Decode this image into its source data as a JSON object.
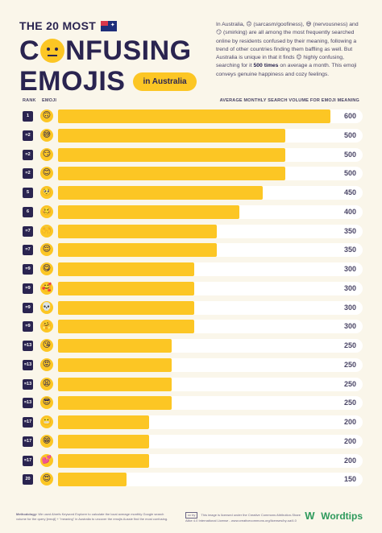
{
  "header": {
    "title_small": "THE 20 MOST",
    "title_line1_prefix": "C",
    "title_line1_suffix": "NFUSING",
    "title_line2": "EMOJIS",
    "pill": "in Australia"
  },
  "intro": {
    "p1": "In Australia, 🙃 (sarcasm/goofiness), 😅 (nervousness) and 😏 (smirking) are all among the most frequently searched online by residents confused by their meaning, following a trend of other countries finding them baffling as well. But Australia is unique in that it finds 😊 highly confusing, searching for it",
    "bold": "500 times",
    "p2": "on average a month. This emoji conveys genuine happiness and cozy feelings."
  },
  "columns": {
    "rank": "RANK",
    "emoji": "EMOJI",
    "volume": "AVERAGE MONTHLY SEARCH VOLUME FOR EMOJI MEANING"
  },
  "colors": {
    "bar": "#fcc624",
    "track": "#ffffff",
    "rank_box": "#2a2450",
    "background": "#faf6ea"
  },
  "chart_data": {
    "type": "bar",
    "orientation": "horizontal",
    "title": "THE 20 MOST CONFUSING EMOJIS in Australia",
    "xlabel": "AVERAGE MONTHLY SEARCH VOLUME FOR EMOJI MEANING",
    "xlim": [
      0,
      600
    ],
    "rows": [
      {
        "rank": "1",
        "emoji": "🙃",
        "value": 600
      },
      {
        "rank": "=2",
        "emoji": "😅",
        "value": 500
      },
      {
        "rank": "=2",
        "emoji": "😏",
        "value": 500
      },
      {
        "rank": "=2",
        "emoji": "😊",
        "value": 500
      },
      {
        "rank": "5",
        "emoji": "🥺",
        "value": 450
      },
      {
        "rank": "6",
        "emoji": "🥴",
        "value": 400
      },
      {
        "rank": "=7",
        "emoji": "🙌",
        "value": 350
      },
      {
        "rank": "=7",
        "emoji": "😌",
        "value": 350
      },
      {
        "rank": "=9",
        "emoji": "😋",
        "value": 300
      },
      {
        "rank": "=9",
        "emoji": "🥰",
        "value": 300
      },
      {
        "rank": "=9",
        "emoji": "💀",
        "value": 300
      },
      {
        "rank": "=9",
        "emoji": "🤗",
        "value": 300
      },
      {
        "rank": "=13",
        "emoji": "😘",
        "value": 250
      },
      {
        "rank": "=13",
        "emoji": "😡",
        "value": 250
      },
      {
        "rank": "=13",
        "emoji": "😩",
        "value": 250
      },
      {
        "rank": "=13",
        "emoji": "😎",
        "value": 250
      },
      {
        "rank": "=17",
        "emoji": "😬",
        "value": 200
      },
      {
        "rank": "=17",
        "emoji": "😁",
        "value": 200
      },
      {
        "rank": "=17",
        "emoji": "💕",
        "value": 200
      },
      {
        "rank": "20",
        "emoji": "😍",
        "value": 150
      }
    ]
  },
  "footer": {
    "methodology_label": "Methodology:",
    "methodology": "We used Ahrefs Keyword Explorer to calculate the local average monthly Google search volume for the query [emoji] + \"meaning\" in Australia to uncover the emojis Aussie find the most confusing.",
    "cc_badge": "cc by",
    "license": "This image is licensed under the Creative Commons Attribution-Share Alike 4.0 International License - www.creativecommons.org/licenses/by-sa/4.0",
    "logo": "Wordtips"
  }
}
